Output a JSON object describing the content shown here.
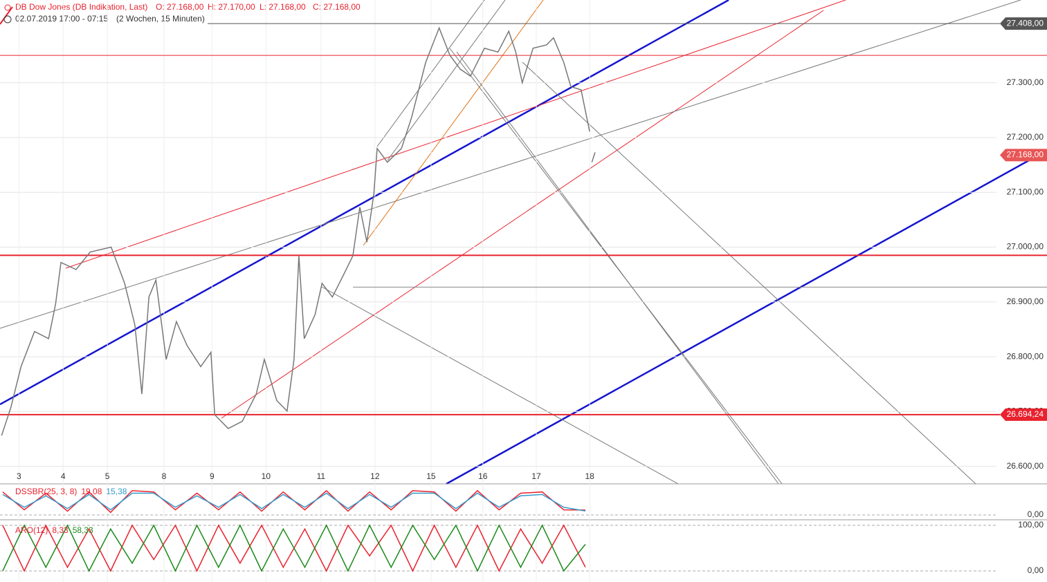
{
  "chart_data": {
    "type": "line",
    "instrument": "DB Dow Jones (DB Indikation, Last)",
    "open": "O: 27.168,00",
    "high": "H: 27.170,00",
    "low": "L: 27.168,00",
    "close": "C: 27.168,00",
    "period": "02.07.2019 17:00 - 07:15",
    "range": "(2 Wochen, 15 Minuten)",
    "x": [
      -0.32,
      -0.15,
      0.04,
      0.29,
      0.55,
      0.68,
      0.78,
      1.06,
      1.32,
      1.71,
      1.96,
      2.15,
      2.28,
      2.41,
      2.54,
      2.73,
      2.92,
      3.12,
      3.37,
      3.56,
      3.63,
      3.88,
      4.14,
      4.4,
      4.55,
      4.78,
      4.97,
      5.1,
      5.19,
      5.29,
      5.49,
      5.62,
      5.81,
      6.0,
      6.19,
      6.32,
      6.45,
      6.58,
      6.64,
      6.83,
      7.09,
      7.28,
      7.54,
      7.79,
      7.99,
      8.18,
      8.37,
      8.63,
      8.88,
      9.08,
      9.21,
      9.33,
      9.53,
      9.78,
      9.91,
      10.1,
      10.23,
      10.42,
      10.58,
      10.59,
      10.62,
      10.68
    ],
    "series": [
      {
        "color": "#777777",
        "values": [
          26656,
          26707,
          26782,
          26846,
          26833,
          26896,
          26972,
          26959,
          26991,
          27000,
          26934,
          26858,
          26732,
          26909,
          26940,
          26795,
          26864,
          26820,
          26782,
          26808,
          26694,
          26669,
          26682,
          26732,
          26795,
          26720,
          26701,
          26795,
          26984,
          26833,
          26877,
          26934,
          26909,
          26946,
          26984,
          27073,
          27009,
          27098,
          27180,
          27155,
          27180,
          27237,
          27337,
          27400,
          27350,
          27325,
          27312,
          27363,
          27356,
          27394,
          27356,
          27300,
          27363,
          27369,
          27382,
          27337,
          27293,
          27287,
          27211,
          null,
          27155,
          27173
        ]
      }
    ],
    "xlim": [
      -0.35,
      18.12
    ],
    "xticks": [
      {
        "value": 0,
        "label": "3"
      },
      {
        "value": 0.82,
        "label": "4"
      },
      {
        "value": 1.64,
        "label": "5"
      },
      {
        "value": 2.69,
        "label": "8"
      },
      {
        "value": 3.58,
        "label": "9"
      },
      {
        "value": 4.58,
        "label": "10"
      },
      {
        "value": 5.6,
        "label": "11"
      },
      {
        "value": 6.6,
        "label": "12"
      },
      {
        "value": 7.64,
        "label": "15"
      },
      {
        "value": 8.6,
        "label": "16"
      },
      {
        "value": 9.59,
        "label": "17"
      },
      {
        "value": 10.58,
        "label": "18"
      }
    ],
    "ylim": [
      26568,
      27451
    ],
    "yticks": [
      {
        "value": 26600,
        "label": "26.600,00"
      },
      {
        "value": 26700,
        "label": "26.700,00"
      },
      {
        "value": 26800,
        "label": "26.800,00"
      },
      {
        "value": 26900,
        "label": "26.900,00"
      },
      {
        "value": 27000,
        "label": "27.000,00"
      },
      {
        "value": 27100,
        "label": "27.100,00"
      },
      {
        "value": 27200,
        "label": "27.200,00"
      },
      {
        "value": 27300,
        "label": "27.300,00"
      }
    ],
    "grid": true,
    "price_labels": [
      {
        "value": 27408,
        "label": "27.408,00",
        "color": "#555555"
      },
      {
        "value": 27168,
        "label": "27.168,00",
        "color": "#e85555"
      },
      {
        "value": 26694.24,
        "label": "26.694,24",
        "color": "#e8222e"
      }
    ],
    "levels": [
      {
        "value": 27350,
        "color": "#e8222e"
      },
      {
        "value": 26985,
        "color": "#e8222e"
      },
      {
        "value": 26927,
        "color": "#888888"
      }
    ],
    "indicators": [
      {
        "name": "DSSBR(25, 3, 8)",
        "ylim": [
          0,
          100
        ],
        "yticks": [
          {
            "value": 0,
            "label": "0,00"
          }
        ],
        "x": [
          -0.3,
          0.1,
          0.5,
          0.9,
          1.3,
          1.7,
          2.1,
          2.5,
          2.9,
          3.3,
          3.7,
          4.1,
          4.5,
          4.9,
          5.3,
          5.7,
          6.1,
          6.5,
          6.9,
          7.3,
          7.7,
          8.1,
          8.5,
          8.9,
          9.3,
          9.7,
          10.1,
          10.5
        ],
        "series": [
          {
            "color": "#e8222e",
            "last_label": "19,08",
            "values": [
              90,
              20,
              85,
              15,
              90,
              10,
              95,
              90,
              20,
              85,
              20,
              90,
              15,
              90,
              20,
              95,
              15,
              90,
              20,
              95,
              90,
              15,
              95,
              20,
              85,
              90,
              20,
              19.08
            ]
          },
          {
            "color": "#3399cc",
            "last_label": "15,38",
            "values": [
              80,
              30,
              75,
              25,
              80,
              20,
              85,
              85,
              30,
              75,
              30,
              80,
              25,
              80,
              30,
              85,
              25,
              80,
              30,
              85,
              85,
              25,
              85,
              30,
              75,
              80,
              30,
              15.38
            ]
          }
        ]
      },
      {
        "name": "ARO(12)",
        "ylim": [
          0,
          100
        ],
        "yticks": [
          {
            "value": 0,
            "label": "0,00"
          },
          {
            "value": 100,
            "label": "100,00"
          }
        ],
        "x": [
          -0.3,
          0.1,
          0.5,
          0.9,
          1.3,
          1.7,
          2.1,
          2.5,
          2.9,
          3.3,
          3.7,
          4.1,
          4.5,
          4.9,
          5.3,
          5.7,
          6.1,
          6.5,
          6.9,
          7.3,
          7.7,
          8.1,
          8.5,
          8.9,
          9.3,
          9.7,
          10.1,
          10.5
        ],
        "series": [
          {
            "color": "#e8222e",
            "last_label": "8,33",
            "values": [
              100,
              0,
              100,
              8,
              92,
              0,
              100,
              25,
              100,
              0,
              100,
              17,
              100,
              8,
              92,
              0,
              100,
              33,
              100,
              0,
              100,
              8,
              100,
              0,
              92,
              17,
              100,
              8.33
            ]
          },
          {
            "color": "#1a8a1a",
            "last_label": "58,33",
            "values": [
              0,
              100,
              8,
              100,
              0,
              92,
              17,
              100,
              0,
              100,
              8,
              100,
              0,
              92,
              8,
              100,
              0,
              100,
              8,
              100,
              25,
              100,
              0,
              100,
              8,
              100,
              0,
              58.33
            ]
          }
        ]
      }
    ]
  }
}
